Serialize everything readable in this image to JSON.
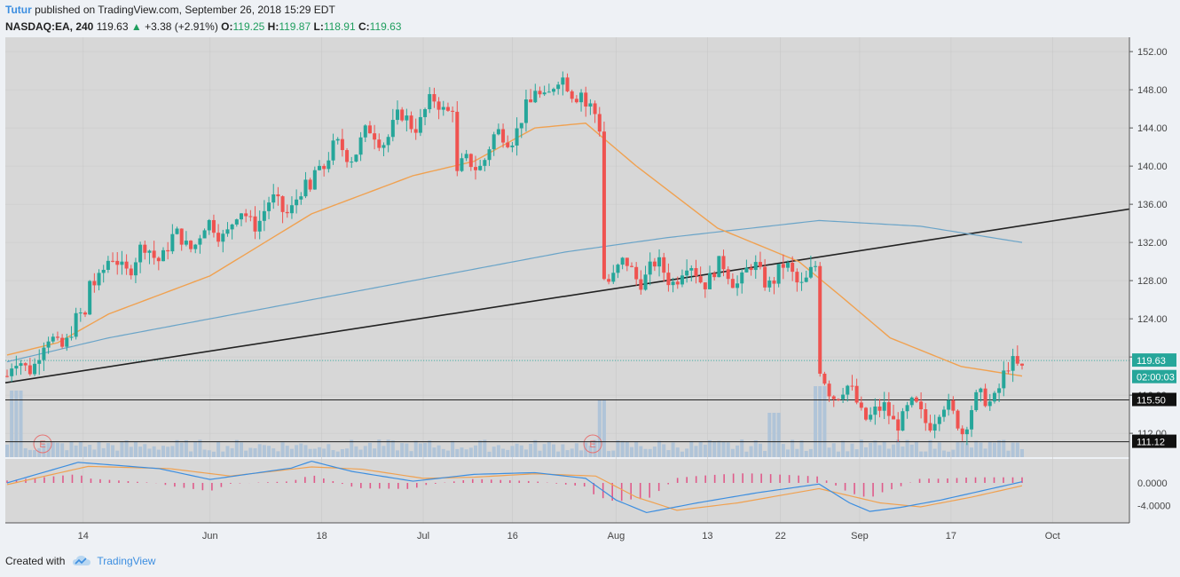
{
  "header": {
    "author": "Tutur",
    "published_text": "published on TradingView.com, September 26, 2018 15:29 EDT",
    "symbol": "NASDAQ:EA, 240",
    "last": "119.63",
    "change": "+3.38 (+2.91%)",
    "o_label": "O:",
    "o_value": "119.25",
    "h_label": "H:",
    "h_value": "119.87",
    "l_label": "L:",
    "l_value": "118.91",
    "c_label": "C:",
    "c_value": "119.63"
  },
  "footer": {
    "created_with": "Created with",
    "brand": "TradingView"
  },
  "colors": {
    "up": "#26a69a",
    "down": "#ef5350",
    "ma_fast": "#f0a150",
    "ma_slow": "#6aa4c8",
    "grid": "#c8c8c8",
    "panel": "#d7d7d7"
  },
  "chart_data": {
    "type": "candlestick",
    "ylim": [
      109.5,
      153.5
    ],
    "y_ticks": [
      "152.00",
      "148.00",
      "144.00",
      "140.00",
      "136.00",
      "132.00",
      "128.00",
      "124.00",
      "120.00",
      "116.00",
      "112.00"
    ],
    "x_ticks": [
      "14",
      "Jun",
      "18",
      "Jul",
      "16",
      "Aug",
      "13",
      "22",
      "Sep",
      "17",
      "Oct"
    ],
    "price_labels": [
      {
        "text": "119.63",
        "value": 119.63,
        "kind": "last"
      },
      {
        "text": "02:00:03",
        "value": 117.9,
        "kind": "countdown"
      },
      {
        "text": "115.50",
        "value": 115.5,
        "kind": "level"
      },
      {
        "text": "111.12",
        "value": 111.12,
        "kind": "level"
      }
    ],
    "horizontal_levels": [
      115.5,
      111.12
    ],
    "trendline": {
      "from": [
        0,
        117.3
      ],
      "to": [
        1,
        135.5
      ]
    },
    "earnings_markers": [
      "E",
      "E"
    ],
    "sections": [
      {
        "from": 0.0,
        "to": 0.08,
        "start": 118.0,
        "end": 124.0
      },
      {
        "from": 0.08,
        "to": 0.3,
        "start": 128.5,
        "end": 137.0
      },
      {
        "from": 0.3,
        "to": 0.44,
        "start": 140.0,
        "end": 147.0
      },
      {
        "from": 0.44,
        "to": 0.52,
        "start": 138.5,
        "end": 146.0
      },
      {
        "from": 0.52,
        "to": 0.57,
        "start": 148.0,
        "end": 148.5
      },
      {
        "from": 0.57,
        "to": 0.586,
        "start": 146.0,
        "end": 143.5
      },
      {
        "from": 0.586,
        "to": 0.8,
        "start": 129.0,
        "end": 128.5
      },
      {
        "from": 0.8,
        "to": 0.86,
        "start": 118.0,
        "end": 113.5
      },
      {
        "from": 0.86,
        "to": 0.94,
        "start": 114.0,
        "end": 114.0
      },
      {
        "from": 0.94,
        "to": 1.0,
        "start": 113.0,
        "end": 119.6
      }
    ],
    "ma_fast_points": [
      [
        0,
        120.2
      ],
      [
        0.05,
        121.5
      ],
      [
        0.1,
        124.5
      ],
      [
        0.2,
        128.5
      ],
      [
        0.3,
        135.0
      ],
      [
        0.4,
        139.0
      ],
      [
        0.46,
        140.5
      ],
      [
        0.52,
        144.0
      ],
      [
        0.57,
        144.5
      ],
      [
        0.62,
        140.0
      ],
      [
        0.7,
        133.5
      ],
      [
        0.78,
        130.0
      ],
      [
        0.82,
        126.5
      ],
      [
        0.87,
        122.0
      ],
      [
        0.94,
        119.0
      ],
      [
        1.0,
        118.0
      ]
    ],
    "ma_slow_points": [
      [
        0,
        119.5
      ],
      [
        0.1,
        122.0
      ],
      [
        0.25,
        125.0
      ],
      [
        0.4,
        128.0
      ],
      [
        0.55,
        131.0
      ],
      [
        0.65,
        132.5
      ],
      [
        0.8,
        134.3
      ],
      [
        0.9,
        133.7
      ],
      [
        1.0,
        132.0
      ]
    ],
    "macd": {
      "ylim": [
        -7.0,
        4.2
      ],
      "y_ticks": [
        "0.0000",
        "-4.0000"
      ]
    }
  }
}
